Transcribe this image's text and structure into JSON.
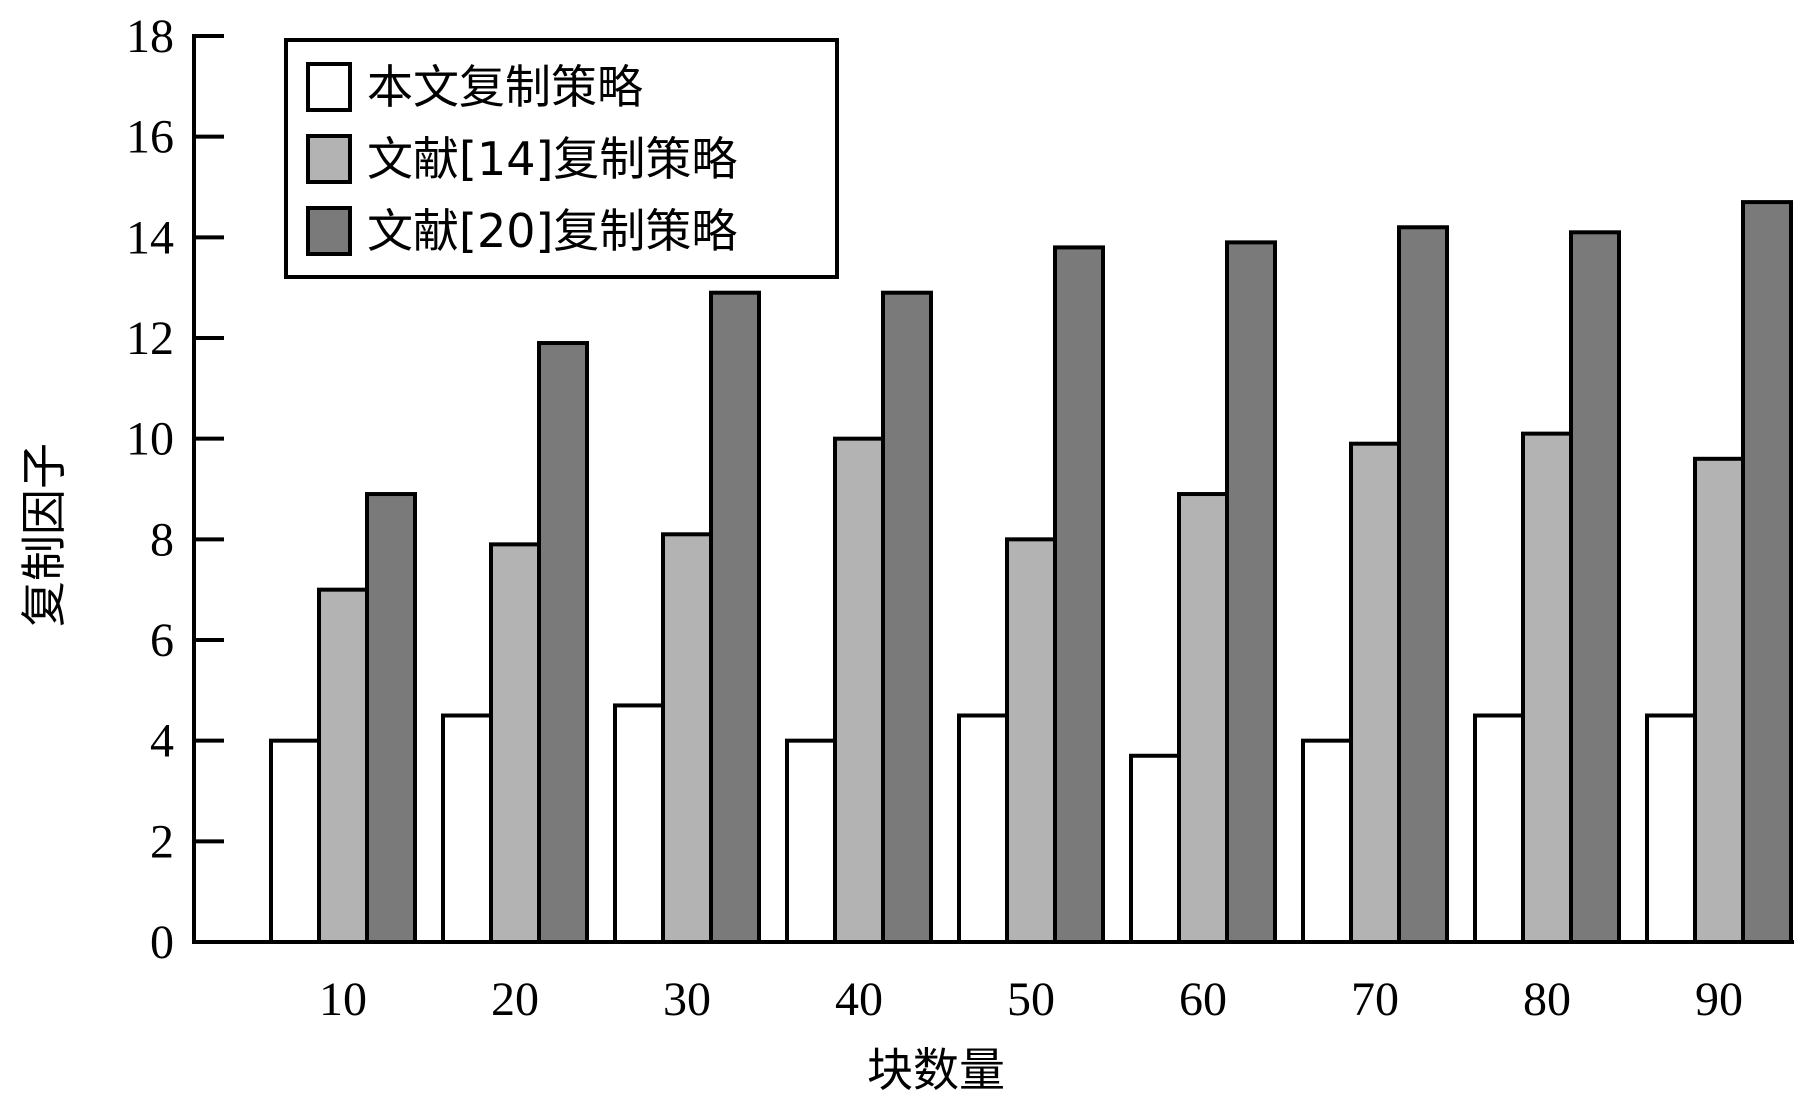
{
  "chart_data": {
    "type": "bar",
    "title": "",
    "xlabel": "块数量",
    "ylabel": "复制因子",
    "ylim": [
      0,
      18
    ],
    "yticks": [
      0,
      2,
      4,
      6,
      8,
      10,
      12,
      14,
      16,
      18
    ],
    "categories": [
      "10",
      "20",
      "30",
      "40",
      "50",
      "60",
      "70",
      "80",
      "90"
    ],
    "series": [
      {
        "name": "本文复制策略",
        "color": "#ffffff",
        "values": [
          4.0,
          4.5,
          4.7,
          4.0,
          4.5,
          3.7,
          4.0,
          4.5,
          4.5
        ]
      },
      {
        "name": "文献[14]复制策略",
        "color": "#b3b3b3",
        "values": [
          7.0,
          7.9,
          8.1,
          10.0,
          8.0,
          8.9,
          9.9,
          10.1,
          9.6
        ]
      },
      {
        "name": "文献[20]复制策略",
        "color": "#7a7a7a",
        "values": [
          8.9,
          11.9,
          12.9,
          12.9,
          13.8,
          13.9,
          14.2,
          14.1,
          14.7
        ]
      }
    ],
    "grid": false,
    "legend_position": "top-left"
  }
}
